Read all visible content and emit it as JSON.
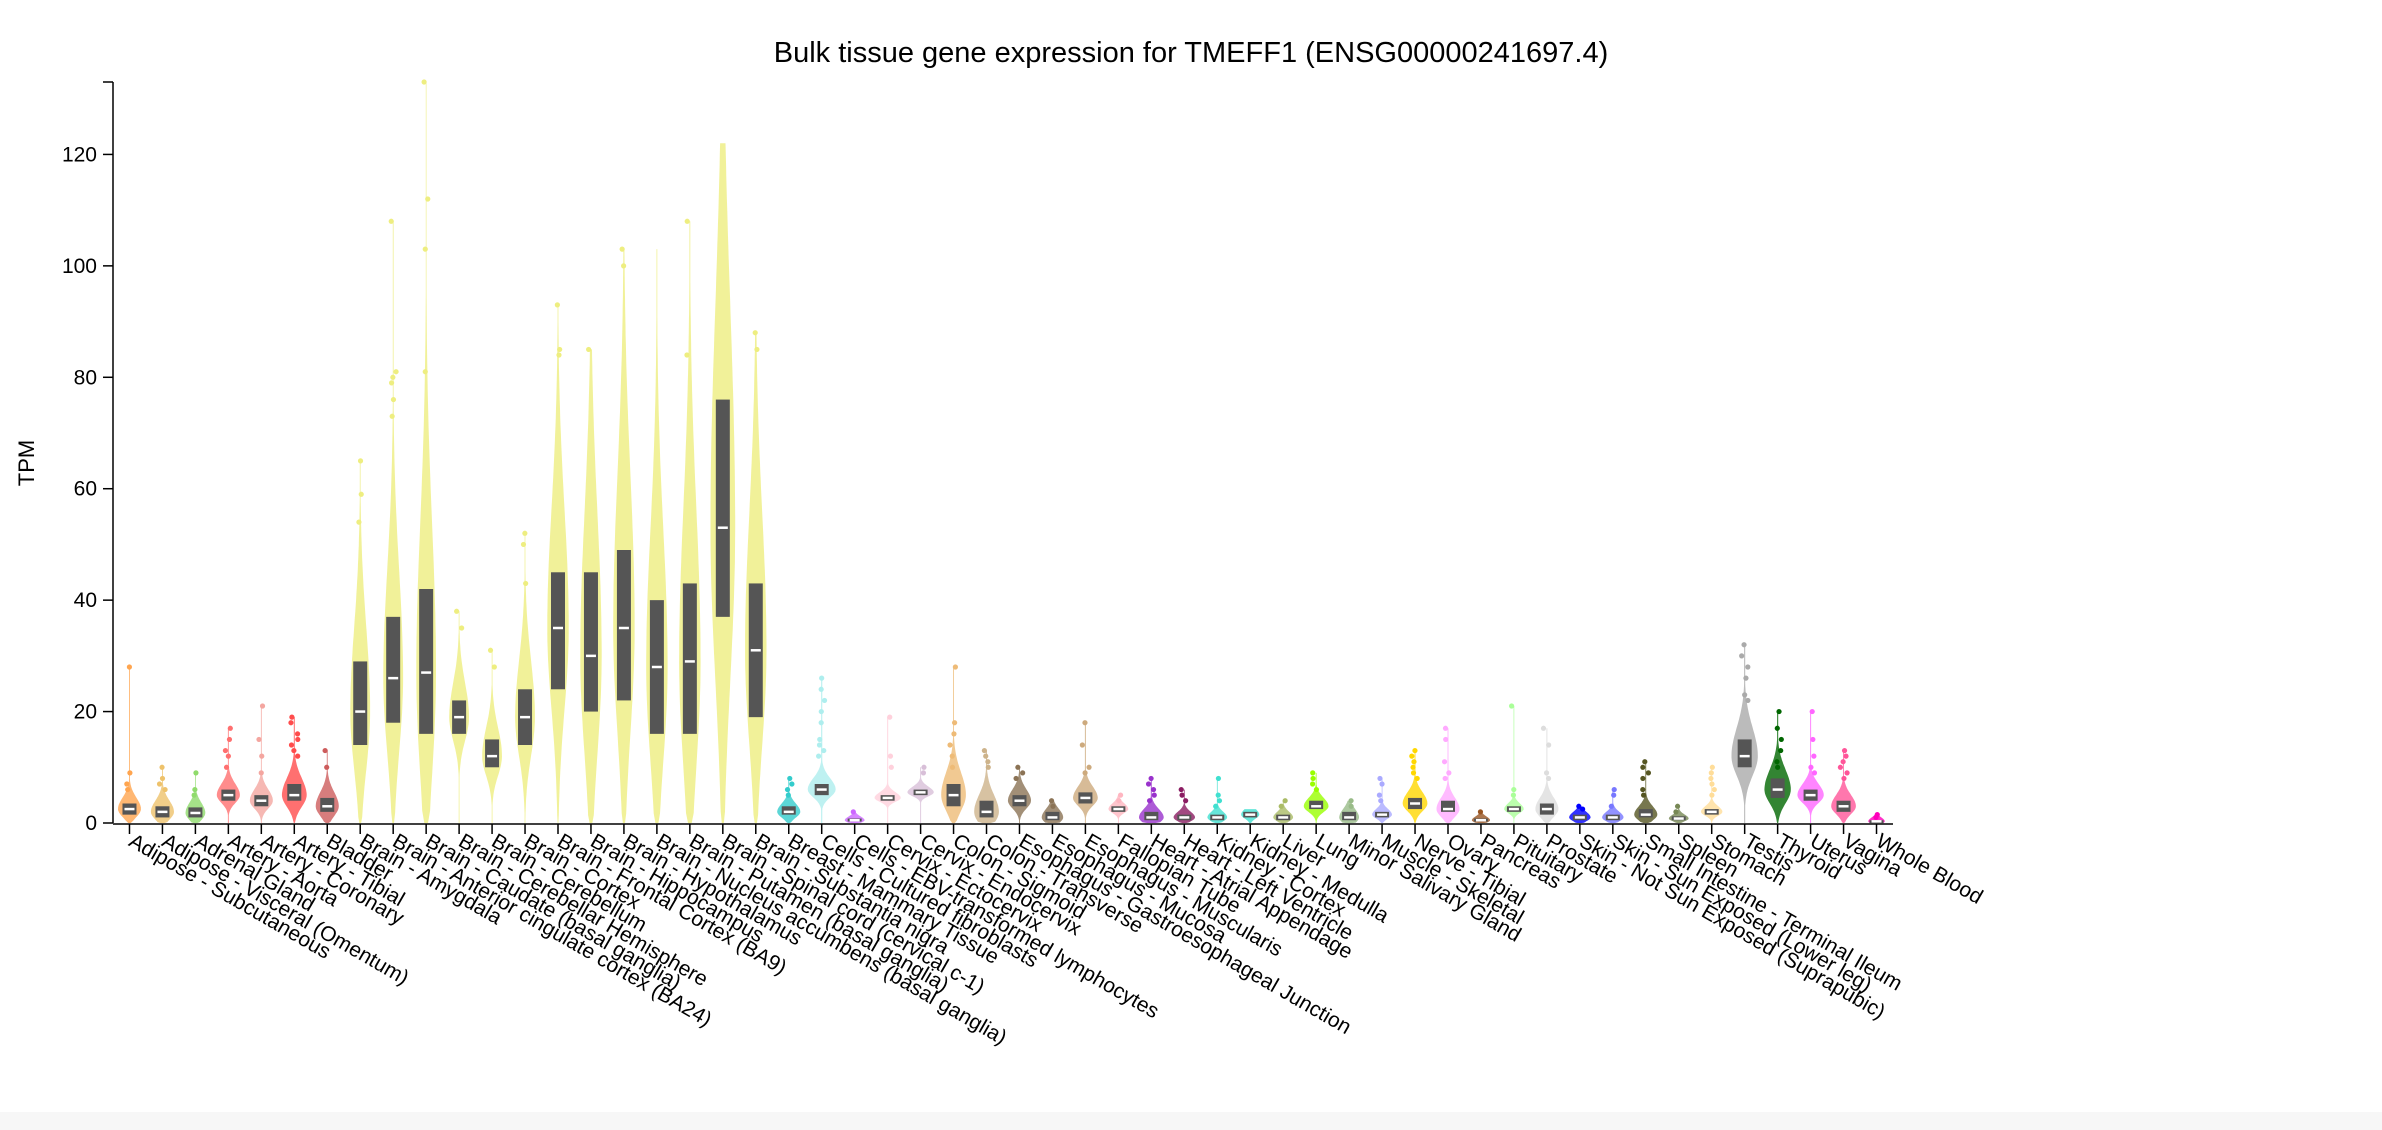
{
  "chart_data": {
    "type": "violin",
    "title": "Bulk tissue gene expression for TMEFF1 (ENSG00000241697.4)",
    "xlabel": "",
    "ylabel": "TPM",
    "ylim": [
      0,
      133
    ],
    "yticks": [
      0,
      20,
      40,
      60,
      80,
      100,
      120
    ],
    "series": [
      {
        "name": "Adipose - Subcutaneous",
        "color": "#FFA54F",
        "median": 2.5,
        "q1": 1.5,
        "q3": 3.5,
        "max": 28,
        "width": 0.7,
        "outliers": [
          28,
          9,
          7,
          6
        ]
      },
      {
        "name": "Adipose - Visceral (Omentum)",
        "color": "#EEC26B",
        "median": 2,
        "q1": 1,
        "q3": 3,
        "max": 10,
        "width": 0.7,
        "outliers": [
          10,
          8,
          7,
          6
        ]
      },
      {
        "name": "Adrenal Gland",
        "color": "#8FDB6B",
        "median": 1.8,
        "q1": 1,
        "q3": 2.8,
        "max": 9,
        "width": 0.6,
        "outliers": [
          9,
          6,
          5
        ]
      },
      {
        "name": "Artery - Aorta",
        "color": "#FF6F6F",
        "median": 5,
        "q1": 4,
        "q3": 6,
        "max": 17,
        "width": 0.7,
        "outliers": [
          17,
          15,
          13,
          12,
          10
        ]
      },
      {
        "name": "Artery - Coronary",
        "color": "#F4A6A0",
        "median": 4,
        "q1": 3,
        "q3": 5,
        "max": 21,
        "width": 0.7,
        "outliers": [
          21,
          15,
          12,
          9
        ]
      },
      {
        "name": "Artery - Tibial",
        "color": "#FF4C4C",
        "median": 5,
        "q1": 4,
        "q3": 7,
        "max": 19,
        "width": 0.75,
        "outliers": [
          19,
          18,
          16,
          15,
          14,
          13,
          12
        ]
      },
      {
        "name": "Bladder",
        "color": "#CD5C5C",
        "median": 3,
        "q1": 2,
        "q3": 4.5,
        "max": 13,
        "width": 0.7,
        "outliers": [
          13,
          10
        ]
      },
      {
        "name": "Brain - Amygdala",
        "color": "#EEEE80",
        "median": 20,
        "q1": 14,
        "q3": 29,
        "max": 65,
        "width": 0.6,
        "outliers": [
          65,
          59,
          54
        ]
      },
      {
        "name": "Brain - Anterior cingulate cortex (BA24)",
        "color": "#EEEE80",
        "median": 26,
        "q1": 18,
        "q3": 37,
        "max": 108,
        "width": 0.6,
        "outliers": [
          108,
          81,
          80,
          79,
          76,
          73
        ]
      },
      {
        "name": "Brain - Caudate (basal ganglia)",
        "color": "#EEEE80",
        "median": 27,
        "q1": 16,
        "q3": 42,
        "max": 133,
        "width": 0.6,
        "outliers": [
          133,
          112,
          103,
          81
        ]
      },
      {
        "name": "Brain - Cerebellar Hemisphere",
        "color": "#EEEE80",
        "median": 19,
        "q1": 16,
        "q3": 22,
        "max": 38,
        "width": 0.6,
        "outliers": [
          38,
          35
        ]
      },
      {
        "name": "Brain - Cerebellum",
        "color": "#EEEE80",
        "median": 12,
        "q1": 10,
        "q3": 15,
        "max": 31,
        "width": 0.6,
        "outliers": [
          31,
          28
        ]
      },
      {
        "name": "Brain - Cortex",
        "color": "#EEEE80",
        "median": 19,
        "q1": 14,
        "q3": 24,
        "max": 52,
        "width": 0.6,
        "outliers": [
          52,
          50,
          43
        ]
      },
      {
        "name": "Brain - Frontal Cortex (BA9)",
        "color": "#EEEE80",
        "median": 35,
        "q1": 24,
        "q3": 45,
        "max": 93,
        "width": 0.65,
        "outliers": [
          93,
          85,
          84
        ]
      },
      {
        "name": "Brain - Hippocampus",
        "color": "#EEEE80",
        "median": 30,
        "q1": 20,
        "q3": 45,
        "max": 85,
        "width": 0.65,
        "outliers": [
          85
        ]
      },
      {
        "name": "Brain - Hypothalamus",
        "color": "#EEEE80",
        "median": 35,
        "q1": 22,
        "q3": 49,
        "max": 103,
        "width": 0.65,
        "outliers": [
          103,
          100
        ]
      },
      {
        "name": "Brain - Nucleus accumbens (basal ganglia)",
        "color": "#EEEE80",
        "median": 28,
        "q1": 16,
        "q3": 40,
        "max": 103,
        "width": 0.65,
        "outliers": []
      },
      {
        "name": "Brain - Putamen (basal ganglia)",
        "color": "#EEEE80",
        "median": 29,
        "q1": 16,
        "q3": 43,
        "max": 108,
        "width": 0.65,
        "outliers": [
          108,
          84
        ]
      },
      {
        "name": "Brain - Spinal cord (cervical c-1)",
        "color": "#EEEE80",
        "median": 53,
        "q1": 37,
        "q3": 76,
        "max": 122,
        "width": 0.75,
        "outliers": []
      },
      {
        "name": "Brain - Substantia nigra",
        "color": "#EEEE80",
        "median": 31,
        "q1": 19,
        "q3": 43,
        "max": 88,
        "width": 0.65,
        "outliers": [
          88,
          85
        ]
      },
      {
        "name": "Breast - Mammary Tissue",
        "color": "#33CCCC",
        "median": 2,
        "q1": 1.5,
        "q3": 3,
        "max": 8,
        "width": 0.7,
        "outliers": [
          8,
          7,
          6,
          5
        ]
      },
      {
        "name": "Cells - Cultured fibroblasts",
        "color": "#AEEEEE",
        "median": 6,
        "q1": 5,
        "q3": 7,
        "max": 26,
        "width": 0.85,
        "outliers": [
          26,
          24,
          22,
          20,
          18,
          15,
          14,
          13,
          12
        ]
      },
      {
        "name": "Cells - EBV-transformed lymphocytes",
        "color": "#CC66FF",
        "median": 0.5,
        "q1": 0.3,
        "q3": 0.8,
        "max": 2,
        "width": 0.6,
        "outliers": [
          2
        ]
      },
      {
        "name": "Cervix - Ectocervix",
        "color": "#FFD1DC",
        "median": 4.5,
        "q1": 4,
        "q3": 5,
        "max": 19,
        "width": 0.8,
        "outliers": [
          19,
          12,
          10
        ]
      },
      {
        "name": "Cervix - Endocervix",
        "color": "#D8BFD8",
        "median": 5.5,
        "q1": 5,
        "q3": 6,
        "max": 10,
        "width": 0.8,
        "outliers": [
          10,
          9
        ]
      },
      {
        "name": "Colon - Sigmoid",
        "color": "#EEBB77",
        "median": 5,
        "q1": 3,
        "q3": 7,
        "max": 28,
        "width": 0.75,
        "outliers": [
          28,
          18,
          16,
          14,
          12,
          10
        ]
      },
      {
        "name": "Colon - Transverse",
        "color": "#CDB38B",
        "median": 2,
        "q1": 1,
        "q3": 4,
        "max": 13,
        "width": 0.75,
        "outliers": [
          13,
          12,
          11,
          10
        ]
      },
      {
        "name": "Esophagus - Gastroesophageal Junction",
        "color": "#8B7355",
        "median": 4,
        "q1": 3,
        "q3": 5,
        "max": 10,
        "width": 0.7,
        "outliers": [
          10,
          9,
          8
        ]
      },
      {
        "name": "Esophagus - Mucosa",
        "color": "#8B7355",
        "median": 1,
        "q1": 0.5,
        "q3": 2,
        "max": 4,
        "width": 0.65,
        "outliers": [
          4,
          3
        ]
      },
      {
        "name": "Esophagus - Muscularis",
        "color": "#CDAA7D",
        "median": 4.5,
        "q1": 3.5,
        "q3": 5.5,
        "max": 18,
        "width": 0.75,
        "outliers": [
          18,
          14,
          10,
          9
        ]
      },
      {
        "name": "Fallopian Tube",
        "color": "#FFB6C1",
        "median": 2.5,
        "q1": 2,
        "q3": 3,
        "max": 5,
        "width": 0.6,
        "outliers": [
          5,
          4
        ]
      },
      {
        "name": "Heart - Atrial Appendage",
        "color": "#9932CC",
        "median": 1,
        "q1": 0.5,
        "q3": 2,
        "max": 8,
        "width": 0.75,
        "outliers": [
          8,
          7,
          6,
          5,
          4
        ]
      },
      {
        "name": "Heart - Left Ventricle",
        "color": "#8B1C62",
        "median": 1,
        "q1": 0.5,
        "q3": 1.5,
        "max": 6,
        "width": 0.65,
        "outliers": [
          6,
          5,
          4
        ]
      },
      {
        "name": "Kidney - Cortex",
        "color": "#40E0D0",
        "median": 1,
        "q1": 0.5,
        "q3": 1.5,
        "max": 8,
        "width": 0.6,
        "outliers": [
          8,
          5,
          4,
          3
        ]
      },
      {
        "name": "Kidney - Medulla",
        "color": "#40E0D0",
        "median": 1.5,
        "q1": 1,
        "q3": 2,
        "max": 2.5,
        "width": 0.55,
        "outliers": []
      },
      {
        "name": "Liver",
        "color": "#AABB66",
        "median": 1,
        "q1": 0.5,
        "q3": 1.5,
        "max": 4,
        "width": 0.6,
        "outliers": [
          4,
          3
        ]
      },
      {
        "name": "Lung",
        "color": "#99FF00",
        "median": 3,
        "q1": 2.5,
        "q3": 4,
        "max": 9,
        "width": 0.75,
        "outliers": [
          9,
          8,
          7,
          6
        ]
      },
      {
        "name": "Minor Salivary Gland",
        "color": "#99BB88",
        "median": 1,
        "q1": 0.5,
        "q3": 2,
        "max": 4,
        "width": 0.6,
        "outliers": [
          4,
          3
        ]
      },
      {
        "name": "Muscle - Skeletal",
        "color": "#AAAAFF",
        "median": 1.5,
        "q1": 1,
        "q3": 2,
        "max": 8,
        "width": 0.6,
        "outliers": [
          8,
          7,
          5,
          4
        ]
      },
      {
        "name": "Nerve - Tibial",
        "color": "#FFD700",
        "median": 3.5,
        "q1": 2.5,
        "q3": 4.5,
        "max": 13,
        "width": 0.75,
        "outliers": [
          13,
          12,
          11,
          10,
          9,
          8
        ]
      },
      {
        "name": "Ovary",
        "color": "#FFAAFF",
        "median": 2.5,
        "q1": 2,
        "q3": 4,
        "max": 17,
        "width": 0.7,
        "outliers": [
          17,
          15,
          11,
          9,
          8
        ]
      },
      {
        "name": "Pancreas",
        "color": "#995522",
        "median": 0.5,
        "q1": 0.3,
        "q3": 0.8,
        "max": 2,
        "width": 0.55,
        "outliers": [
          2
        ]
      },
      {
        "name": "Pituitary",
        "color": "#AAFF99",
        "median": 2.5,
        "q1": 2,
        "q3": 3,
        "max": 21,
        "width": 0.6,
        "outliers": [
          21,
          6,
          5
        ]
      },
      {
        "name": "Prostate",
        "color": "#DDDDDD",
        "median": 2.5,
        "q1": 1.5,
        "q3": 3.5,
        "max": 17,
        "width": 0.7,
        "outliers": [
          17,
          14,
          9,
          8
        ]
      },
      {
        "name": "Skin - Not Sun Exposed (Suprapubic)",
        "color": "#0000FF",
        "median": 1,
        "q1": 0.5,
        "q3": 1.5,
        "max": 3,
        "width": 0.65,
        "outliers": [
          3,
          2.5
        ]
      },
      {
        "name": "Skin - Sun Exposed (Lower leg)",
        "color": "#7777FF",
        "median": 1,
        "q1": 0.5,
        "q3": 1.5,
        "max": 6,
        "width": 0.65,
        "outliers": [
          6,
          5,
          3
        ]
      },
      {
        "name": "Small Intestine - Terminal Ileum",
        "color": "#555522",
        "median": 1.5,
        "q1": 1,
        "q3": 2.5,
        "max": 11,
        "width": 0.7,
        "outliers": [
          11,
          10,
          9,
          8,
          6,
          5
        ]
      },
      {
        "name": "Spleen",
        "color": "#778855",
        "median": 0.8,
        "q1": 0.5,
        "q3": 1.2,
        "max": 3,
        "width": 0.6,
        "outliers": [
          3,
          2
        ]
      },
      {
        "name": "Stomach",
        "color": "#FFDD99",
        "median": 2,
        "q1": 1.5,
        "q3": 2.5,
        "max": 10,
        "width": 0.65,
        "outliers": [
          10,
          9,
          8,
          7,
          6,
          5
        ]
      },
      {
        "name": "Testis",
        "color": "#AAAAAA",
        "median": 12,
        "q1": 10,
        "q3": 15,
        "max": 32,
        "width": 0.8,
        "outliers": [
          32,
          30,
          28,
          26,
          23,
          22
        ]
      },
      {
        "name": "Thyroid",
        "color": "#006600",
        "median": 6,
        "q1": 4.5,
        "q3": 8,
        "max": 20,
        "width": 0.8,
        "outliers": [
          20,
          17,
          15,
          13,
          11,
          10
        ]
      },
      {
        "name": "Uterus",
        "color": "#FF66FF",
        "median": 5,
        "q1": 4,
        "q3": 6,
        "max": 20,
        "width": 0.8,
        "outliers": [
          20,
          15,
          12,
          10,
          9
        ]
      },
      {
        "name": "Vagina",
        "color": "#FF5599",
        "median": 3,
        "q1": 2,
        "q3": 4,
        "max": 13,
        "width": 0.75,
        "outliers": [
          13,
          12,
          11,
          10,
          9,
          8
        ]
      },
      {
        "name": "Whole Blood",
        "color": "#FF00BB",
        "median": 0.3,
        "q1": 0.2,
        "q3": 0.5,
        "max": 1.5,
        "width": 0.5,
        "outliers": [
          1.5,
          1
        ]
      }
    ]
  }
}
